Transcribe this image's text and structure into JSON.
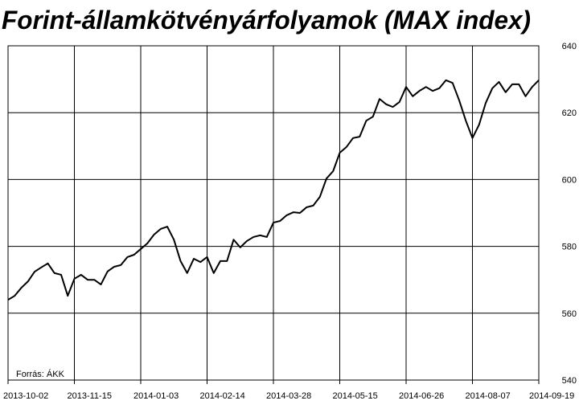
{
  "chart_data": {
    "type": "line",
    "title": "Forint-államkötvényárfolyamok (MAX index)",
    "source": "Forrás: ÁKK",
    "categories": [
      "2013-10-02",
      null,
      null,
      null,
      null,
      null,
      null,
      null,
      null,
      null,
      "2013-11-15",
      null,
      null,
      null,
      null,
      null,
      null,
      null,
      null,
      null,
      "2014-01-03",
      null,
      null,
      null,
      null,
      null,
      null,
      null,
      null,
      null,
      "2014-02-14",
      null,
      null,
      null,
      null,
      null,
      null,
      null,
      null,
      null,
      "2014-03-28",
      null,
      null,
      null,
      null,
      null,
      null,
      null,
      null,
      null,
      "2014-05-15",
      null,
      null,
      null,
      null,
      null,
      null,
      null,
      null,
      null,
      "2014-06-26",
      null,
      null,
      null,
      null,
      null,
      null,
      null,
      null,
      null,
      "2014-08-07",
      null,
      null,
      null,
      null,
      null,
      null,
      null,
      null,
      null,
      "2014-09-19"
    ],
    "series": [
      {
        "name": "MAX index",
        "color": "#000000",
        "values": [
          564.0,
          565.2,
          567.6,
          569.5,
          572.4,
          573.7,
          574.9,
          572.0,
          571.5,
          565.2,
          570.3,
          571.5,
          570.0,
          570.0,
          568.6,
          572.5,
          573.9,
          574.4,
          576.8,
          577.5,
          579.2,
          580.9,
          583.5,
          585.2,
          585.9,
          582.0,
          575.6,
          572.0,
          576.3,
          575.3,
          576.8,
          572.0,
          575.6,
          575.6,
          582.0,
          579.7,
          581.6,
          582.8,
          583.3,
          582.8,
          587.1,
          587.6,
          589.3,
          590.2,
          590.0,
          591.7,
          592.2,
          594.8,
          600.3,
          602.5,
          608.0,
          609.7,
          612.4,
          612.8,
          617.6,
          618.8,
          624.1,
          622.5,
          621.7,
          623.2,
          627.7,
          624.9,
          626.5,
          627.7,
          626.5,
          627.3,
          629.7,
          628.9,
          623.7,
          617.6,
          612.4,
          616.4,
          622.9,
          627.3,
          629.2,
          626.1,
          628.5,
          628.5,
          624.9,
          627.7,
          629.7
        ]
      }
    ],
    "ylim": [
      540,
      640
    ],
    "yticks": [
      540,
      560,
      580,
      600,
      620,
      640
    ],
    "grid": true
  }
}
